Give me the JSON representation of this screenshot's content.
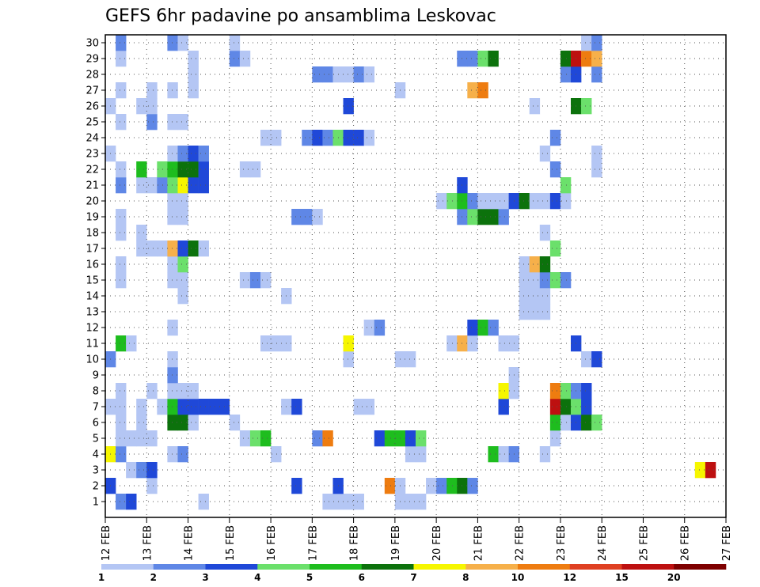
{
  "chart_data": {
    "type": "heatmap",
    "title": "GEFS 6hr padavine po ansamblima Leskovac",
    "x_ticks": [
      "12 FEB",
      "13 FEB",
      "14 FEB",
      "15 FEB",
      "16 FEB",
      "17 FEB",
      "18 FEB",
      "19 FEB",
      "20 FEB",
      "21 FEB",
      "22 FEB",
      "23 FEB",
      "24 FEB",
      "25 FEB",
      "26 FEB",
      "27 FEB"
    ],
    "y_ticks": [
      "1",
      "2",
      "3",
      "4",
      "5",
      "6",
      "7",
      "8",
      "9",
      "10",
      "11",
      "12",
      "13",
      "14",
      "15",
      "16",
      "17",
      "18",
      "19",
      "20",
      "21",
      "22",
      "23",
      "24",
      "25",
      "26",
      "27",
      "28",
      "29",
      "30"
    ],
    "x_range_days": [
      0,
      15
    ],
    "y_range": [
      0,
      30
    ],
    "step_hours": 6,
    "grid": true,
    "colorbar": {
      "labels": [
        "1",
        "2",
        "3",
        "4",
        "5",
        "6",
        "7",
        "8",
        "10",
        "12",
        "15",
        "20"
      ],
      "colors": [
        "#b4c6f4",
        "#5f87e6",
        "#1f48d8",
        "#6be06b",
        "#1ebd1e",
        "#0c720c",
        "#f6f600",
        "#f6b04a",
        "#ee7c10",
        "#df4022",
        "#bd1010",
        "#7e0000"
      ]
    },
    "cells": [
      [
        1,
        1,
        1
      ],
      [
        1,
        2,
        2
      ],
      [
        1,
        9,
        0
      ],
      [
        1,
        21,
        0
      ],
      [
        1,
        22,
        0
      ],
      [
        1,
        23,
        0
      ],
      [
        1,
        24,
        0
      ],
      [
        1,
        28,
        0
      ],
      [
        1,
        29,
        0
      ],
      [
        1,
        30,
        0
      ],
      [
        2,
        0,
        2
      ],
      [
        2,
        4,
        0
      ],
      [
        2,
        18,
        2
      ],
      [
        2,
        22,
        2
      ],
      [
        2,
        27,
        8
      ],
      [
        2,
        28,
        0
      ],
      [
        2,
        31,
        0
      ],
      [
        2,
        32,
        1
      ],
      [
        2,
        33,
        4
      ],
      [
        2,
        34,
        5
      ],
      [
        2,
        35,
        1
      ],
      [
        3,
        2,
        0
      ],
      [
        3,
        3,
        1
      ],
      [
        3,
        4,
        2
      ],
      [
        3,
        57,
        6
      ],
      [
        3,
        58,
        10
      ],
      [
        4,
        0,
        6
      ],
      [
        4,
        1,
        1
      ],
      [
        4,
        6,
        0
      ],
      [
        4,
        7,
        1
      ],
      [
        4,
        16,
        0
      ],
      [
        4,
        29,
        0
      ],
      [
        4,
        30,
        0
      ],
      [
        4,
        37,
        4
      ],
      [
        4,
        38,
        0
      ],
      [
        4,
        39,
        1
      ],
      [
        4,
        42,
        0
      ],
      [
        5,
        1,
        0
      ],
      [
        5,
        2,
        0
      ],
      [
        5,
        3,
        0
      ],
      [
        5,
        4,
        0
      ],
      [
        5,
        13,
        0
      ],
      [
        5,
        14,
        3
      ],
      [
        5,
        15,
        4
      ],
      [
        5,
        20,
        1
      ],
      [
        5,
        21,
        8
      ],
      [
        5,
        26,
        2
      ],
      [
        5,
        27,
        4
      ],
      [
        5,
        28,
        4
      ],
      [
        5,
        29,
        2
      ],
      [
        5,
        30,
        3
      ],
      [
        5,
        43,
        0
      ],
      [
        6,
        1,
        0
      ],
      [
        6,
        3,
        0
      ],
      [
        6,
        6,
        5
      ],
      [
        6,
        7,
        5
      ],
      [
        6,
        8,
        0
      ],
      [
        6,
        12,
        0
      ],
      [
        6,
        43,
        4
      ],
      [
        6,
        44,
        0
      ],
      [
        6,
        45,
        2
      ],
      [
        6,
        46,
        5
      ],
      [
        6,
        47,
        3
      ],
      [
        7,
        0,
        0
      ],
      [
        7,
        1,
        0
      ],
      [
        7,
        3,
        0
      ],
      [
        7,
        5,
        0
      ],
      [
        7,
        6,
        4
      ],
      [
        7,
        7,
        2
      ],
      [
        7,
        8,
        2
      ],
      [
        7,
        9,
        2
      ],
      [
        7,
        10,
        2
      ],
      [
        7,
        11,
        2
      ],
      [
        7,
        17,
        0
      ],
      [
        7,
        18,
        2
      ],
      [
        7,
        24,
        0
      ],
      [
        7,
        25,
        0
      ],
      [
        7,
        38,
        2
      ],
      [
        7,
        43,
        10
      ],
      [
        7,
        44,
        5
      ],
      [
        7,
        45,
        3
      ],
      [
        7,
        46,
        2
      ],
      [
        8,
        1,
        0
      ],
      [
        8,
        4,
        0
      ],
      [
        8,
        6,
        0
      ],
      [
        8,
        7,
        0
      ],
      [
        8,
        8,
        0
      ],
      [
        8,
        38,
        6
      ],
      [
        8,
        39,
        0
      ],
      [
        8,
        43,
        8
      ],
      [
        8,
        44,
        3
      ],
      [
        8,
        45,
        1
      ],
      [
        8,
        46,
        2
      ],
      [
        9,
        6,
        1
      ],
      [
        9,
        39,
        0
      ],
      [
        10,
        0,
        1
      ],
      [
        10,
        6,
        0
      ],
      [
        10,
        23,
        0
      ],
      [
        10,
        28,
        0
      ],
      [
        10,
        29,
        0
      ],
      [
        10,
        46,
        0
      ],
      [
        10,
        47,
        2
      ],
      [
        11,
        1,
        4
      ],
      [
        11,
        2,
        0
      ],
      [
        11,
        15,
        0
      ],
      [
        11,
        16,
        0
      ],
      [
        11,
        17,
        0
      ],
      [
        11,
        23,
        6
      ],
      [
        11,
        33,
        0
      ],
      [
        11,
        34,
        7
      ],
      [
        11,
        35,
        0
      ],
      [
        11,
        38,
        0
      ],
      [
        11,
        39,
        0
      ],
      [
        11,
        45,
        2
      ],
      [
        12,
        6,
        0
      ],
      [
        12,
        25,
        0
      ],
      [
        12,
        26,
        1
      ],
      [
        12,
        35,
        2
      ],
      [
        12,
        36,
        4
      ],
      [
        12,
        37,
        1
      ],
      [
        13,
        40,
        0
      ],
      [
        13,
        41,
        0
      ],
      [
        13,
        42,
        0
      ],
      [
        14,
        7,
        0
      ],
      [
        14,
        17,
        0
      ],
      [
        14,
        40,
        0
      ],
      [
        14,
        41,
        0
      ],
      [
        14,
        42,
        0
      ],
      [
        15,
        1,
        0
      ],
      [
        15,
        6,
        0
      ],
      [
        15,
        7,
        0
      ],
      [
        15,
        13,
        0
      ],
      [
        15,
        14,
        1
      ],
      [
        15,
        15,
        0
      ],
      [
        15,
        40,
        0
      ],
      [
        15,
        41,
        0
      ],
      [
        15,
        42,
        1
      ],
      [
        15,
        43,
        3
      ],
      [
        15,
        44,
        1
      ],
      [
        16,
        1,
        0
      ],
      [
        16,
        6,
        0
      ],
      [
        16,
        7,
        3
      ],
      [
        16,
        40,
        0
      ],
      [
        16,
        41,
        7
      ],
      [
        16,
        42,
        5
      ],
      [
        17,
        3,
        0
      ],
      [
        17,
        4,
        0
      ],
      [
        17,
        5,
        0
      ],
      [
        17,
        6,
        7
      ],
      [
        17,
        7,
        2
      ],
      [
        17,
        8,
        5
      ],
      [
        17,
        9,
        0
      ],
      [
        17,
        43,
        3
      ],
      [
        18,
        1,
        0
      ],
      [
        18,
        3,
        0
      ],
      [
        18,
        42,
        0
      ],
      [
        19,
        1,
        0
      ],
      [
        19,
        6,
        0
      ],
      [
        19,
        7,
        0
      ],
      [
        19,
        18,
        1
      ],
      [
        19,
        19,
        1
      ],
      [
        19,
        20,
        0
      ],
      [
        19,
        34,
        1
      ],
      [
        19,
        35,
        3
      ],
      [
        19,
        36,
        5
      ],
      [
        19,
        37,
        5
      ],
      [
        19,
        38,
        1
      ],
      [
        20,
        6,
        0
      ],
      [
        20,
        7,
        0
      ],
      [
        20,
        32,
        0
      ],
      [
        20,
        33,
        3
      ],
      [
        20,
        34,
        4
      ],
      [
        20,
        35,
        1
      ],
      [
        20,
        36,
        0
      ],
      [
        20,
        37,
        0
      ],
      [
        20,
        38,
        0
      ],
      [
        20,
        39,
        2
      ],
      [
        20,
        40,
        5
      ],
      [
        20,
        41,
        0
      ],
      [
        20,
        42,
        0
      ],
      [
        20,
        43,
        2
      ],
      [
        20,
        44,
        0
      ],
      [
        21,
        1,
        1
      ],
      [
        21,
        3,
        0
      ],
      [
        21,
        4,
        0
      ],
      [
        21,
        5,
        1
      ],
      [
        21,
        6,
        3
      ],
      [
        21,
        7,
        6
      ],
      [
        21,
        8,
        2
      ],
      [
        21,
        9,
        2
      ],
      [
        21,
        34,
        2
      ],
      [
        21,
        44,
        3
      ],
      [
        22,
        1,
        0
      ],
      [
        22,
        3,
        4
      ],
      [
        22,
        5,
        3
      ],
      [
        22,
        6,
        4
      ],
      [
        22,
        7,
        5
      ],
      [
        22,
        8,
        5
      ],
      [
        22,
        9,
        2
      ],
      [
        22,
        13,
        0
      ],
      [
        22,
        14,
        0
      ],
      [
        22,
        43,
        1
      ],
      [
        22,
        47,
        0
      ],
      [
        23,
        0,
        0
      ],
      [
        23,
        6,
        0
      ],
      [
        23,
        7,
        1
      ],
      [
        23,
        8,
        2
      ],
      [
        23,
        9,
        1
      ],
      [
        23,
        42,
        0
      ],
      [
        23,
        47,
        0
      ],
      [
        24,
        15,
        0
      ],
      [
        24,
        16,
        0
      ],
      [
        24,
        19,
        1
      ],
      [
        24,
        20,
        2
      ],
      [
        24,
        21,
        1
      ],
      [
        24,
        22,
        3
      ],
      [
        24,
        23,
        2
      ],
      [
        24,
        24,
        2
      ],
      [
        24,
        25,
        0
      ],
      [
        24,
        43,
        1
      ],
      [
        25,
        1,
        0
      ],
      [
        25,
        4,
        1
      ],
      [
        25,
        6,
        0
      ],
      [
        25,
        7,
        0
      ],
      [
        26,
        0,
        0
      ],
      [
        26,
        3,
        0
      ],
      [
        26,
        4,
        0
      ],
      [
        26,
        23,
        2
      ],
      [
        26,
        41,
        0
      ],
      [
        26,
        45,
        5
      ],
      [
        26,
        46,
        3
      ],
      [
        27,
        1,
        0
      ],
      [
        27,
        4,
        0
      ],
      [
        27,
        6,
        0
      ],
      [
        27,
        8,
        0
      ],
      [
        27,
        28,
        0
      ],
      [
        27,
        35,
        7
      ],
      [
        27,
        36,
        8
      ],
      [
        28,
        8,
        0
      ],
      [
        28,
        20,
        1
      ],
      [
        28,
        21,
        1
      ],
      [
        28,
        22,
        0
      ],
      [
        28,
        23,
        0
      ],
      [
        28,
        24,
        1
      ],
      [
        28,
        25,
        0
      ],
      [
        28,
        44,
        1
      ],
      [
        28,
        45,
        2
      ],
      [
        28,
        47,
        1
      ],
      [
        29,
        1,
        0
      ],
      [
        29,
        8,
        0
      ],
      [
        29,
        12,
        1
      ],
      [
        29,
        13,
        0
      ],
      [
        29,
        34,
        1
      ],
      [
        29,
        35,
        1
      ],
      [
        29,
        36,
        3
      ],
      [
        29,
        37,
        5
      ],
      [
        29,
        44,
        5
      ],
      [
        29,
        45,
        10
      ],
      [
        29,
        46,
        8
      ],
      [
        29,
        47,
        7
      ],
      [
        30,
        1,
        1
      ],
      [
        30,
        6,
        1
      ],
      [
        30,
        7,
        0
      ],
      [
        30,
        12,
        0
      ],
      [
        30,
        46,
        0
      ],
      [
        30,
        47,
        1
      ]
    ]
  }
}
